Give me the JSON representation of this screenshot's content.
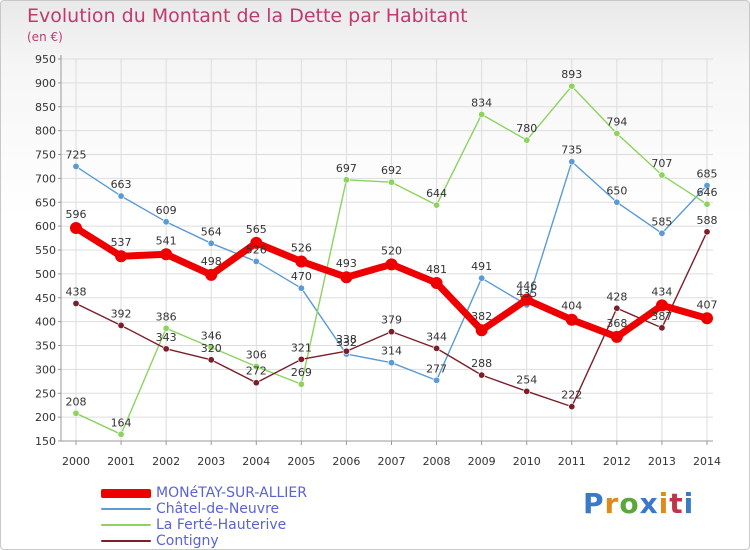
{
  "header": {
    "title": "Evolution du Montant de la Dette par Habitant",
    "unit": "(en €)"
  },
  "logo": {
    "text": "Proxiti",
    "letter_colors": [
      "#3a78c8",
      "#e08a1c",
      "#5aa83a",
      "#3a78c8",
      "#e08a1c",
      "#c0334b",
      "#3a78c8"
    ]
  },
  "colors": {
    "title": "#c03a6e",
    "axis_text": "#333333",
    "grid": "#dddddd",
    "legend_text": "#5a63d6"
  },
  "chart_data": {
    "type": "line",
    "title": "Evolution du Montant de la Dette par Habitant",
    "ylabel": "(en €)",
    "xlabel": "",
    "x": [
      2000,
      2001,
      2002,
      2003,
      2004,
      2005,
      2006,
      2007,
      2008,
      2009,
      2010,
      2011,
      2012,
      2013,
      2014
    ],
    "ylim": [
      150,
      950
    ],
    "yticks": [
      150,
      200,
      250,
      300,
      350,
      400,
      450,
      500,
      550,
      600,
      650,
      700,
      750,
      800,
      850,
      900,
      950
    ],
    "grid": true,
    "legend_position": "bottom-left",
    "series": [
      {
        "name": "Châtel-de-Neuvre",
        "color": "#5b9bd5",
        "emphasis": false,
        "values": [
          725,
          663,
          609,
          564,
          526,
          470,
          332,
          314,
          277,
          491,
          435,
          735,
          650,
          585,
          685
        ]
      },
      {
        "name": "La Ferté-Hauterive",
        "color": "#8dd35f",
        "emphasis": false,
        "values": [
          208,
          164,
          386,
          346,
          306,
          269,
          697,
          692,
          644,
          834,
          780,
          893,
          794,
          707,
          646
        ]
      },
      {
        "name": "Contigny",
        "color": "#7a1f2a",
        "emphasis": false,
        "values": [
          438,
          392,
          343,
          320,
          272,
          321,
          338,
          379,
          344,
          288,
          254,
          222,
          428,
          387,
          588
        ]
      },
      {
        "name": "MONéTAY-SUR-ALLIER",
        "color": "#ee0000",
        "emphasis": true,
        "values": [
          596,
          537,
          541,
          498,
          565,
          526,
          493,
          520,
          481,
          382,
          446,
          404,
          368,
          434,
          407
        ]
      }
    ],
    "legend_order": [
      "MONéTAY-SUR-ALLIER",
      "Châtel-de-Neuvre",
      "La Ferté-Hauterive",
      "Contigny"
    ]
  }
}
